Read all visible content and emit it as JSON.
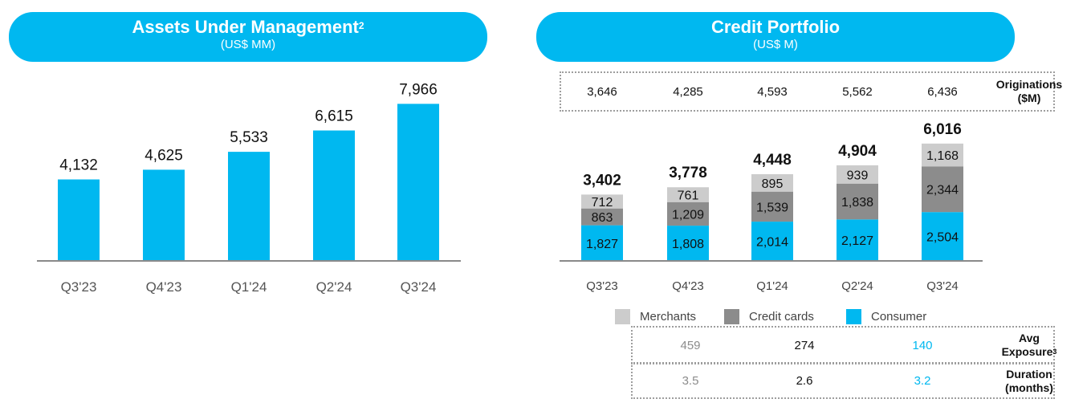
{
  "left_panel": {
    "title": "Assets Under Management",
    "title_superscript": "2",
    "subtitle": "(US$ MM)"
  },
  "right_panel": {
    "title": "Credit Portfolio",
    "subtitle": "(US$ M)",
    "originations_label": [
      "Originations",
      "($M)"
    ],
    "originations": [
      "3,646",
      "4,285",
      "4,593",
      "5,562",
      "6,436"
    ],
    "legend": [
      {
        "name": "Merchants",
        "color": "#cccccc"
      },
      {
        "name": "Credit cards",
        "color": "#8c8c8c"
      },
      {
        "name": "Consumer",
        "color": "#00b8f0"
      }
    ],
    "avg_exposure_label": [
      "Avg",
      "Exposure"
    ],
    "avg_exposure_superscript": "3",
    "avg_exposure": [
      "459",
      "274",
      "140"
    ],
    "duration_label": [
      "Duration",
      "(months)"
    ],
    "duration": [
      "3.5",
      "2.6",
      "3.2"
    ]
  },
  "chart_data": [
    {
      "type": "bar",
      "title": "Assets Under Management",
      "subtitle": "(US$ MM)",
      "categories": [
        "Q3'23",
        "Q4'23",
        "Q1'24",
        "Q2'24",
        "Q3'24"
      ],
      "values": [
        4132,
        4625,
        5533,
        6615,
        7966
      ],
      "labels": [
        "4,132",
        "4,625",
        "5,533",
        "6,615",
        "7,966"
      ],
      "color": "#00b8f0"
    },
    {
      "type": "stacked-bar",
      "title": "Credit Portfolio",
      "subtitle": "(US$ M)",
      "categories": [
        "Q3'23",
        "Q4'23",
        "Q1'24",
        "Q2'24",
        "Q3'24"
      ],
      "series": [
        {
          "name": "Consumer",
          "color": "#00b8f0",
          "values": [
            1827,
            1808,
            2014,
            2127,
            2504
          ],
          "labels": [
            "1,827",
            "1,808",
            "2,014",
            "2,127",
            "2,504"
          ]
        },
        {
          "name": "Credit cards",
          "color": "#8c8c8c",
          "values": [
            863,
            1209,
            1539,
            1838,
            2344
          ],
          "labels": [
            "863",
            "1,209",
            "1,539",
            "1,838",
            "2,344"
          ]
        },
        {
          "name": "Merchants",
          "color": "#cccccc",
          "values": [
            712,
            761,
            895,
            939,
            1168
          ],
          "labels": [
            "712",
            "761",
            "895",
            "939",
            "1,168"
          ]
        }
      ],
      "totals": [
        3402,
        3778,
        4448,
        4904,
        6016
      ],
      "total_labels": [
        "3,402",
        "3,778",
        "4,448",
        "4,904",
        "6,016"
      ]
    }
  ]
}
